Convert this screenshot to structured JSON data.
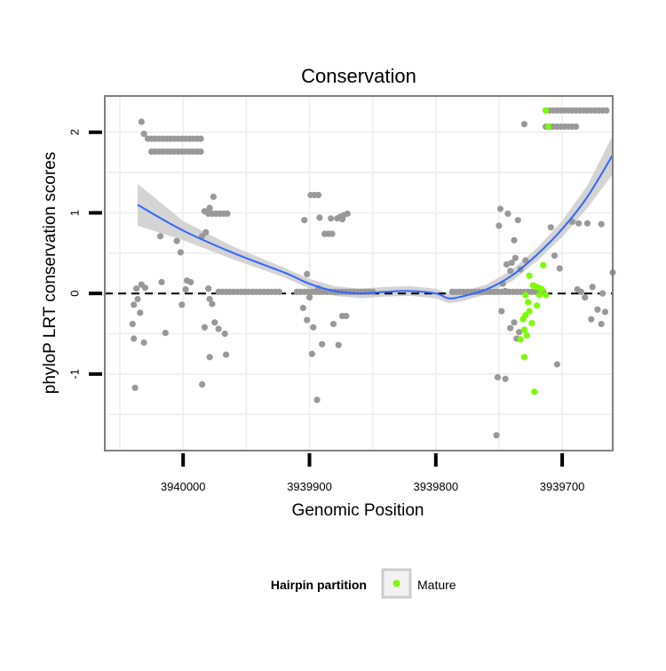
{
  "chart_data": {
    "type": "scatter",
    "title": "Conservation",
    "xlabel": "Genomic Position",
    "ylabel": "phyloP LRT conservation scores",
    "x_reversed": true,
    "xlim": [
      3940062,
      3939660
    ],
    "ylim": [
      -1.95,
      2.45
    ],
    "x_ticks": [
      3940000,
      3939900,
      3939800,
      3939700
    ],
    "x_tick_labels": [
      "3940000",
      "3939900",
      "3939800",
      "3939700"
    ],
    "y_ticks": [
      -1,
      0,
      1,
      2
    ],
    "y_tick_labels": [
      "-1",
      "0",
      "1",
      "2"
    ],
    "grid": true,
    "reference_line": {
      "y": 0,
      "style": "dashed",
      "color": "#000000"
    },
    "legend": {
      "placement": "bottom",
      "title": "Hairpin partition",
      "entries": [
        {
          "label": "Mature",
          "color": "#7cfc00"
        }
      ]
    },
    "colors": {
      "other": "#999999",
      "mature": "#7cfc00",
      "smooth": "#3366ff",
      "band": "#cccccc",
      "panel_border": "#808080",
      "grid": "#f0f0f0"
    },
    "series": [
      {
        "name": "",
        "color": "#999999",
        "points": [
          [
            3940033,
            2.13
          ],
          [
            3940031,
            1.98
          ],
          [
            3940028,
            1.92
          ],
          [
            3940025,
            1.92
          ],
          [
            3940022,
            1.92
          ],
          [
            3940019,
            1.92
          ],
          [
            3940016,
            1.92
          ],
          [
            3940013,
            1.92
          ],
          [
            3940010,
            1.92
          ],
          [
            3940007,
            1.92
          ],
          [
            3940004,
            1.92
          ],
          [
            3940001,
            1.92
          ],
          [
            3939998,
            1.92
          ],
          [
            3939995,
            1.92
          ],
          [
            3939992,
            1.92
          ],
          [
            3939989,
            1.92
          ],
          [
            3939986,
            1.92
          ],
          [
            3940025,
            1.76
          ],
          [
            3940022,
            1.76
          ],
          [
            3940019,
            1.76
          ],
          [
            3940016,
            1.76
          ],
          [
            3940013,
            1.76
          ],
          [
            3940010,
            1.76
          ],
          [
            3940007,
            1.76
          ],
          [
            3940004,
            1.76
          ],
          [
            3940001,
            1.76
          ],
          [
            3939998,
            1.76
          ],
          [
            3939995,
            1.76
          ],
          [
            3939992,
            1.76
          ],
          [
            3939989,
            1.76
          ],
          [
            3939986,
            1.76
          ],
          [
            3939983,
            1.02
          ],
          [
            3939980,
            0.99
          ],
          [
            3939977,
            0.99
          ],
          [
            3939974,
            0.99
          ],
          [
            3939971,
            0.99
          ],
          [
            3939968,
            0.99
          ],
          [
            3939965,
            0.99
          ],
          [
            3939976,
            1.2
          ],
          [
            3939979,
            1.06
          ],
          [
            3939982,
            0.76
          ],
          [
            3939985,
            0.71
          ],
          [
            3940018,
            0.71
          ],
          [
            3940005,
            0.65
          ],
          [
            3940002,
            0.51
          ],
          [
            3939997,
            0.16
          ],
          [
            3939994,
            0.14
          ],
          [
            3940017,
            0.14
          ],
          [
            3940030,
            0.07
          ],
          [
            3940033,
            0.11
          ],
          [
            3940037,
            0.06
          ],
          [
            3940036,
            -0.07
          ],
          [
            3940034,
            -0.24
          ],
          [
            3940039,
            -0.14
          ],
          [
            3940040,
            -0.38
          ],
          [
            3940039,
            -0.56
          ],
          [
            3940031,
            -0.61
          ],
          [
            3940014,
            -0.49
          ],
          [
            3940001,
            -0.14
          ],
          [
            3939998,
            0.05
          ],
          [
            3939980,
            0.06
          ],
          [
            3939979,
            -0.07
          ],
          [
            3939977,
            -0.13
          ],
          [
            3939975,
            -0.36
          ],
          [
            3939972,
            -0.44
          ],
          [
            3939967,
            -0.5
          ],
          [
            3939966,
            -0.76
          ],
          [
            3939979,
            -0.79
          ],
          [
            3939983,
            -0.42
          ],
          [
            3939985,
            -1.13
          ],
          [
            3940038,
            -1.17
          ],
          [
            3939972,
            0.02
          ],
          [
            3939969,
            0.02
          ],
          [
            3939966,
            0.02
          ],
          [
            3939963,
            0.02
          ],
          [
            3939960,
            0.02
          ],
          [
            3939957,
            0.02
          ],
          [
            3939954,
            0.02
          ],
          [
            3939951,
            0.02
          ],
          [
            3939948,
            0.02
          ],
          [
            3939945,
            0.02
          ],
          [
            3939942,
            0.02
          ],
          [
            3939939,
            0.02
          ],
          [
            3939936,
            0.02
          ],
          [
            3939933,
            0.02
          ],
          [
            3939930,
            0.02
          ],
          [
            3939927,
            0.02
          ],
          [
            3939924,
            0.02
          ],
          [
            3939899,
            1.22
          ],
          [
            3939896,
            1.22
          ],
          [
            3939893,
            1.22
          ],
          [
            3939904,
            0.91
          ],
          [
            3939892,
            0.94
          ],
          [
            3939888,
            0.74
          ],
          [
            3939885,
            0.74
          ],
          [
            3939882,
            0.74
          ],
          [
            3939883,
            0.93
          ],
          [
            3939878,
            0.93
          ],
          [
            3939876,
            0.95
          ],
          [
            3939873,
            0.97
          ],
          [
            3939870,
            0.99
          ],
          [
            3939874,
            0.92
          ],
          [
            3939902,
            0.24
          ],
          [
            3939893,
            0.06
          ],
          [
            3939905,
            -0.18
          ],
          [
            3939902,
            -0.33
          ],
          [
            3939897,
            -0.42
          ],
          [
            3939890,
            -0.63
          ],
          [
            3939881,
            -0.38
          ],
          [
            3939877,
            -0.64
          ],
          [
            3939874,
            -0.28
          ],
          [
            3939871,
            -0.28
          ],
          [
            3939898,
            -0.75
          ],
          [
            3939894,
            -1.32
          ],
          [
            3939900,
            -0.05
          ],
          [
            3939910,
            0.02
          ],
          [
            3939907,
            0.02
          ],
          [
            3939904,
            0.02
          ],
          [
            3939901,
            0.02
          ],
          [
            3939898,
            0.02
          ],
          [
            3939895,
            0.02
          ],
          [
            3939892,
            0.02
          ],
          [
            3939889,
            0.02
          ],
          [
            3939886,
            0.02
          ],
          [
            3939883,
            0.02
          ],
          [
            3939880,
            0.02
          ],
          [
            3939877,
            0.02
          ],
          [
            3939874,
            0.02
          ],
          [
            3939871,
            0.02
          ],
          [
            3939868,
            0.02
          ],
          [
            3939865,
            0.02
          ],
          [
            3939862,
            0.02
          ],
          [
            3939859,
            0.02
          ],
          [
            3939856,
            0.02
          ],
          [
            3939853,
            0.02
          ],
          [
            3939850,
            0.02
          ],
          [
            3939787,
            0.02
          ],
          [
            3939784,
            0.02
          ],
          [
            3939781,
            0.02
          ],
          [
            3939778,
            0.02
          ],
          [
            3939775,
            0.02
          ],
          [
            3939772,
            0.02
          ],
          [
            3939769,
            0.02
          ],
          [
            3939766,
            0.02
          ],
          [
            3939763,
            0.02
          ],
          [
            3939760,
            0.02
          ],
          [
            3939757,
            0.02
          ],
          [
            3939754,
            0.02
          ],
          [
            3939751,
            0.02
          ],
          [
            3939748,
            0.02
          ],
          [
            3939745,
            0.02
          ],
          [
            3939742,
            0.02
          ],
          [
            3939739,
            0.02
          ],
          [
            3939736,
            0.02
          ],
          [
            3939733,
            0.02
          ],
          [
            3939730,
            0.02
          ],
          [
            3939727,
            0.02
          ],
          [
            3939724,
            0.02
          ],
          [
            3939721,
            0.02
          ],
          [
            3939718,
            0.02
          ],
          [
            3939715,
            0.02
          ],
          [
            3939749,
            1.05
          ],
          [
            3939743,
            0.99
          ],
          [
            3939740,
            0.38
          ],
          [
            3939737,
            0.44
          ],
          [
            3939741,
            0.28
          ],
          [
            3939744,
            0.36
          ],
          [
            3939738,
            0.66
          ],
          [
            3939735,
            0.91
          ],
          [
            3939730,
            2.1
          ],
          [
            3939750,
            0.84
          ],
          [
            3939729,
            0.41
          ],
          [
            3939733,
            0.3
          ],
          [
            3939747,
            0.12
          ],
          [
            3939745,
            0.03
          ],
          [
            3939748,
            -0.22
          ],
          [
            3939738,
            -0.36
          ],
          [
            3939741,
            -0.43
          ],
          [
            3939736,
            -0.56
          ],
          [
            3939734,
            -0.48
          ],
          [
            3939751,
            -1.04
          ],
          [
            3939745,
            -1.06
          ],
          [
            3939752,
            -1.76
          ],
          [
            3939713,
            2.27
          ],
          [
            3939710,
            2.27
          ],
          [
            3939707,
            2.27
          ],
          [
            3939704,
            2.27
          ],
          [
            3939701,
            2.27
          ],
          [
            3939698,
            2.27
          ],
          [
            3939695,
            2.27
          ],
          [
            3939692,
            2.27
          ],
          [
            3939689,
            2.27
          ],
          [
            3939686,
            2.27
          ],
          [
            3939683,
            2.27
          ],
          [
            3939680,
            2.27
          ],
          [
            3939677,
            2.27
          ],
          [
            3939674,
            2.27
          ],
          [
            3939671,
            2.27
          ],
          [
            3939668,
            2.27
          ],
          [
            3939665,
            2.27
          ],
          [
            3939713,
            2.07
          ],
          [
            3939710,
            2.07
          ],
          [
            3939707,
            2.07
          ],
          [
            3939704,
            2.07
          ],
          [
            3939701,
            2.07
          ],
          [
            3939698,
            2.07
          ],
          [
            3939695,
            2.07
          ],
          [
            3939692,
            2.07
          ],
          [
            3939689,
            2.07
          ],
          [
            3939709,
            0.82
          ],
          [
            3939706,
            0.47
          ],
          [
            3939702,
            0.31
          ],
          [
            3939692,
            0.89
          ],
          [
            3939687,
            0.87
          ],
          [
            3939680,
            0.87
          ],
          [
            3939669,
            0.86
          ],
          [
            3939660,
            0.26
          ],
          [
            3939688,
            0.05
          ],
          [
            3939685,
            0.02
          ],
          [
            3939682,
            -0.05
          ],
          [
            3939677,
            -0.32
          ],
          [
            3939672,
            -0.2
          ],
          [
            3939669,
            -0.38
          ],
          [
            3939666,
            -0.23
          ],
          [
            3939668,
            0.0
          ],
          [
            3939704,
            -0.88
          ],
          [
            3939676,
            0.08
          ]
        ]
      },
      {
        "name": "Mature",
        "color": "#7cfc00",
        "points": [
          [
            3939713,
            2.27
          ],
          [
            3939711,
            2.07
          ],
          [
            3939729,
            -0.02
          ],
          [
            3939726,
            0.22
          ],
          [
            3939723,
            0.1
          ],
          [
            3939720,
            0.08
          ],
          [
            3939717,
            0.06
          ],
          [
            3939715,
            0.35
          ],
          [
            3939727,
            -0.11
          ],
          [
            3939726,
            -0.22
          ],
          [
            3939729,
            -0.27
          ],
          [
            3939731,
            -0.32
          ],
          [
            3939730,
            -0.45
          ],
          [
            3939728,
            -0.52
          ],
          [
            3939733,
            -0.57
          ],
          [
            3939730,
            -0.79
          ],
          [
            3939722,
            -1.22
          ],
          [
            3939720,
            -0.15
          ],
          [
            3939718,
            -0.02
          ],
          [
            3939716,
            0.05
          ],
          [
            3939713,
            -0.02
          ],
          [
            3939724,
            -0.37
          ]
        ]
      }
    ],
    "smooth_line": {
      "x": [
        3940036,
        3940000,
        3939960,
        3939920,
        3939900,
        3939880,
        3939860,
        3939840,
        3939820,
        3939800,
        3939790,
        3939780,
        3939760,
        3939740,
        3939720,
        3939700,
        3939680,
        3939660
      ],
      "y": [
        1.1,
        0.78,
        0.5,
        0.26,
        0.12,
        0.03,
        0.0,
        0.02,
        0.03,
        0.0,
        -0.06,
        -0.04,
        0.05,
        0.22,
        0.48,
        0.8,
        1.2,
        1.72
      ],
      "band_halfwidth": [
        0.26,
        0.12,
        0.08,
        0.06,
        0.06,
        0.06,
        0.06,
        0.06,
        0.06,
        0.06,
        0.06,
        0.06,
        0.06,
        0.07,
        0.08,
        0.1,
        0.14,
        0.24
      ]
    }
  }
}
